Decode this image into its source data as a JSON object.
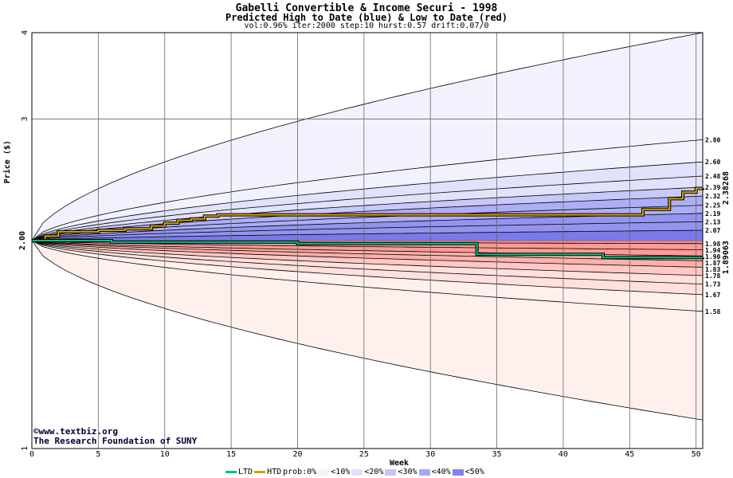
{
  "header": {
    "title": "Gabelli Convertible & Income Securi - 1998",
    "subtitle": "Predicted High to Date (blue) &  Low to Date (red)",
    "params": "vol:0.96% iter:2000 step:10 hurst:0.57 drift:0.07/0"
  },
  "credit": {
    "line1": "©www.textbiz.org",
    "line2": "The Research Foundation of SUNY"
  },
  "legend": {
    "ltd": "LTD",
    "htd": "HTD",
    "prob": "prob:0%",
    "items": [
      {
        "label": "<10%",
        "color": "#f4f4ff"
      },
      {
        "label": "<20%",
        "color": "#e2e2fc"
      },
      {
        "label": "<30%",
        "color": "#c6c6fa"
      },
      {
        "label": "<40%",
        "color": "#a8a8f6"
      },
      {
        "label": "<50%",
        "color": "#8282ee"
      }
    ]
  },
  "colors": {
    "ltd": "#00c080",
    "htd": "#d0a000",
    "high_fill": [
      "#f2f2ff",
      "#e2e2fc",
      "#c8c8fa",
      "#aeaef6",
      "#9494f0",
      "#7a7ae8"
    ],
    "low_fill": [
      "#fff0ee",
      "#ffe0dc",
      "#ffc8c4",
      "#ffb0ac",
      "#ff9a96",
      "#f88888"
    ]
  },
  "chart_data": {
    "type": "area",
    "title": "Gabelli Convertible & Income Securi - 1998",
    "xlabel": "Week",
    "ylabel": "Price ($)",
    "xlim": [
      0,
      50.5
    ],
    "ylim": [
      1,
      4
    ],
    "y_scale": "log",
    "xticks": [
      0,
      5,
      10,
      15,
      20,
      25,
      30,
      35,
      40,
      45,
      50
    ],
    "yticks": [
      1,
      2,
      3,
      4
    ],
    "start_value": 2.0,
    "start_label": "2.00",
    "high_bands": [
      2.8,
      2.6,
      2.48,
      2.39,
      2.32,
      2.25,
      2.19,
      2.13,
      2.07
    ],
    "high_outer": 4.0,
    "low_bands": [
      1.98,
      1.94,
      1.9,
      1.87,
      1.83,
      1.78,
      1.73,
      1.67,
      1.58
    ],
    "low_outer": 1.1,
    "band_labels": [
      "2.80",
      "2.60",
      "2.48",
      "2.39",
      "2.32",
      "2.25",
      "2.19",
      "2.13",
      "2.07",
      "1.98",
      "1.94",
      "1.90",
      "1.87",
      "1.83",
      "1.78",
      "1.73",
      "1.67",
      "1.58"
    ],
    "htd_final": 2.38268,
    "htd_final_label": "2.38268",
    "ltd_final": 1.89063,
    "ltd_final_label": "1.89063",
    "htd_series": [
      [
        0,
        2.0
      ],
      [
        1,
        2.03
      ],
      [
        2,
        2.06
      ],
      [
        5,
        2.07
      ],
      [
        7,
        2.08
      ],
      [
        9,
        2.1
      ],
      [
        10,
        2.12
      ],
      [
        11,
        2.14
      ],
      [
        12,
        2.15
      ],
      [
        13,
        2.17
      ],
      [
        14,
        2.18
      ],
      [
        20,
        2.18
      ],
      [
        30,
        2.18
      ],
      [
        40,
        2.18
      ],
      [
        45,
        2.18
      ],
      [
        46,
        2.22
      ],
      [
        48,
        2.3
      ],
      [
        49,
        2.35
      ],
      [
        50,
        2.38
      ],
      [
        50.5,
        2.38268
      ]
    ],
    "ltd_series": [
      [
        0,
        2.0
      ],
      [
        6,
        1.99
      ],
      [
        20,
        1.98
      ],
      [
        33,
        1.98
      ],
      [
        33.5,
        1.91
      ],
      [
        40,
        1.91
      ],
      [
        43,
        1.89
      ],
      [
        50.5,
        1.89063
      ]
    ],
    "grid": true,
    "legend_position": "bottom"
  }
}
